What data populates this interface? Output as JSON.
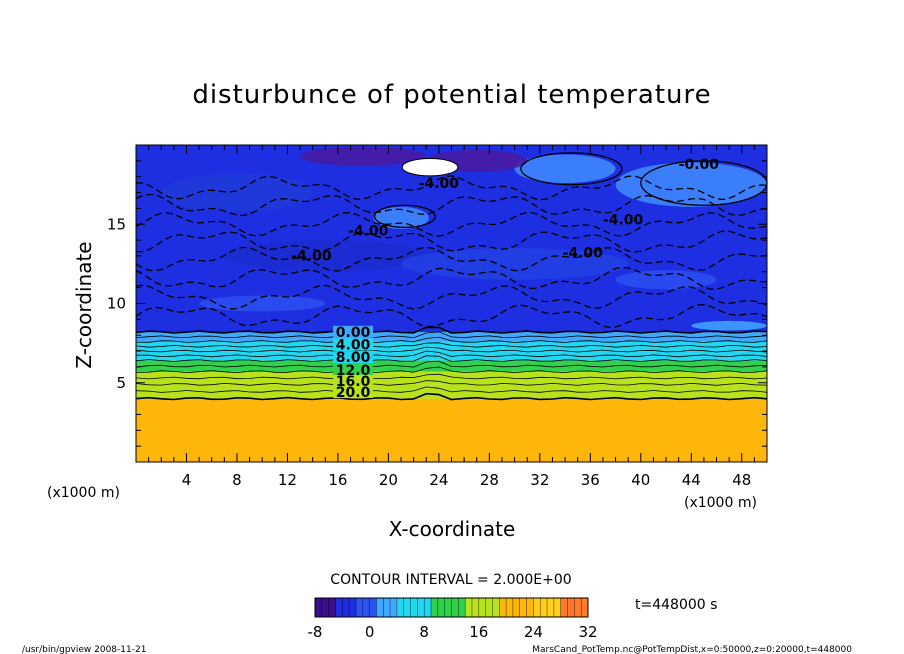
{
  "chart_data": {
    "type": "heatmap",
    "title": "disturbunce of potential temperature",
    "xlabel": "X-coordinate",
    "ylabel": "Z-coordinate",
    "x_unit_left": "(x1000 m)",
    "x_unit_right": "(x1000 m)",
    "xlim": [
      0,
      50
    ],
    "ylim": [
      0,
      20
    ],
    "xticks": [
      "4",
      "8",
      "12",
      "16",
      "20",
      "24",
      "28",
      "32",
      "36",
      "40",
      "44",
      "48"
    ],
    "yticks": [
      "5",
      "10",
      "15"
    ],
    "layers": [
      {
        "z_from": 0.0,
        "z_to": 4.0,
        "value": 21
      },
      {
        "z_from": 4.0,
        "z_to": 4.9,
        "value": 18
      },
      {
        "z_from": 4.9,
        "z_to": 5.7,
        "value": 14
      },
      {
        "z_from": 5.7,
        "z_to": 6.4,
        "value": 11
      },
      {
        "z_from": 6.4,
        "z_to": 7.0,
        "value": 8
      },
      {
        "z_from": 7.0,
        "z_to": 7.6,
        "value": 5
      },
      {
        "z_from": 7.6,
        "z_to": 8.2,
        "value": 2
      },
      {
        "z_from": 8.2,
        "z_to": 20.0,
        "value": -4
      }
    ],
    "contour_labels": [
      {
        "text": "0.00",
        "x": 17.2,
        "z": 7.9
      },
      {
        "text": "4.00",
        "x": 17.2,
        "z": 7.1
      },
      {
        "text": "8.00",
        "x": 17.2,
        "z": 6.3
      },
      {
        "text": "12.0",
        "x": 17.2,
        "z": 5.5
      },
      {
        "text": "16.0",
        "x": 17.2,
        "z": 4.8
      },
      {
        "text": "20.0",
        "x": 17.2,
        "z": 4.1
      },
      {
        "text": "-4.00",
        "x": 24.0,
        "z": 17.3
      },
      {
        "text": "-4.00",
        "x": 18.4,
        "z": 14.3
      },
      {
        "text": "-4.00",
        "x": 13.9,
        "z": 12.7
      },
      {
        "text": "-4.00",
        "x": 38.6,
        "z": 15.0
      },
      {
        "text": "-4.00",
        "x": 35.4,
        "z": 12.9
      },
      {
        "text": "-0.00",
        "x": 44.6,
        "z": 18.5
      }
    ],
    "contour_interval": "CONTOUR INTERVAL = 2.000E+00",
    "colorbar": {
      "min": -8,
      "max": 32,
      "ticks": [
        "-8",
        "0",
        "8",
        "16",
        "24",
        "32"
      ],
      "tick_values": [
        -8,
        0,
        8,
        16,
        24,
        32
      ]
    },
    "time_label": "t=448000 s",
    "colors": {
      "deep_purple": "#3a0f8a",
      "dark_blue": "#1d2fe0",
      "blue": "#2c54f2",
      "light_blue": "#3fa8ff",
      "cyan": "#22d7f2",
      "green": "#2fd24a",
      "yellow_green": "#b8e21b",
      "orange": "#ffb60a",
      "yellow": "#ffce1e"
    }
  },
  "footer": {
    "left": "/usr/bin/gpview  2008-11-21",
    "right": "MarsCand_PotTemp.nc@PotTempDist,x=0:50000,z=0:20000,t=448000"
  }
}
